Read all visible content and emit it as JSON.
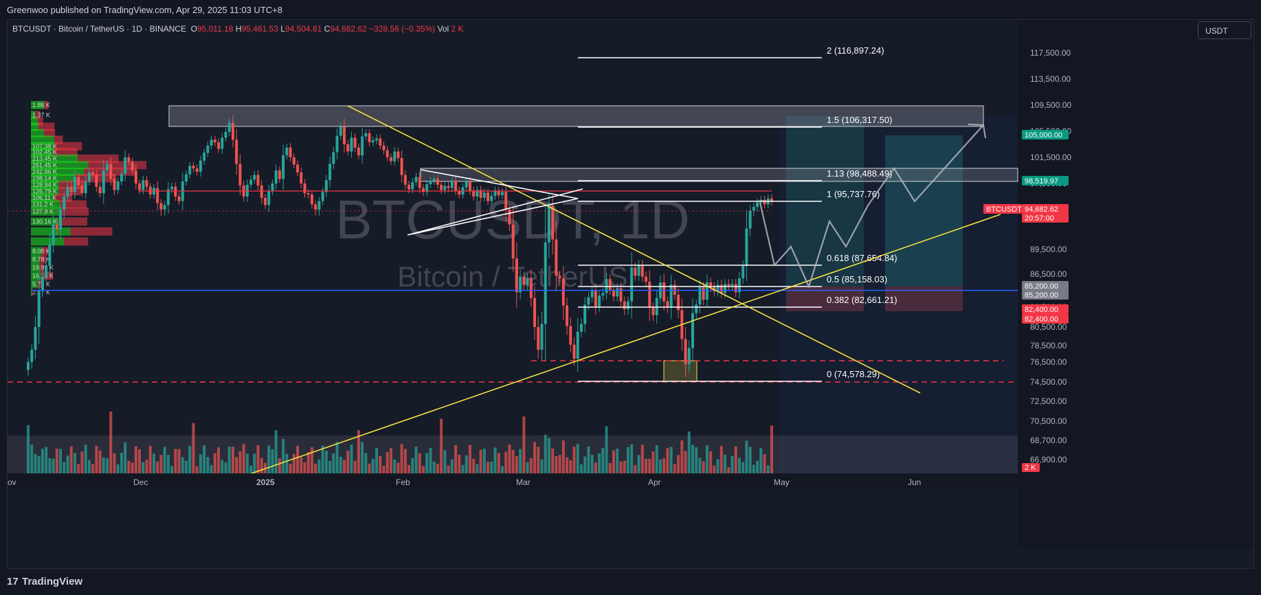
{
  "header": {
    "published": "Greenwoo published on TradingView.com, Apr 29, 2025 11:03 UTC+8"
  },
  "symbol_line": {
    "symbol": "BTCUSDT · Bitcoin / TetherUS · 1D · BINANCE",
    "o_label": "O",
    "o": "95,011.18",
    "h_label": "H",
    "h": "95,461.53",
    "l_label": "L",
    "l": "94,504.81",
    "c_label": "C",
    "c": "94,682.62",
    "change": "−328.56 (−0.35%)",
    "vol_label": "Vol",
    "vol": "2 K"
  },
  "currency_button": "USDT",
  "watermark": {
    "line1": "BTCUSDT, 1D",
    "line2": "Bitcoin / TetherUS"
  },
  "footer": {
    "brand": "TradingView"
  },
  "colors": {
    "background": "#161b28",
    "up": "#26a69a",
    "down": "#ef5350",
    "trendline": "#f5e342",
    "fib": "#ffffff",
    "poc": "#2962ff",
    "red_dashed": "#f23645"
  },
  "chart_data": {
    "type": "candlestick",
    "symbol": "BTCUSDT",
    "timeframe": "1D",
    "x_ticks": [
      "ov",
      "Dec",
      "2025",
      "Feb",
      "Mar",
      "Apr",
      "May",
      "Jun"
    ],
    "y_ticks": [
      "117,500.00",
      "113,500.00",
      "109,500.00",
      "105,500.00",
      "101,500.00",
      "97,500.00",
      "93,500.00",
      "89,500.00",
      "86,500.00",
      "82,500.00",
      "80,500.00",
      "78,500.00",
      "76,500.00",
      "74,500.00",
      "72,500.00",
      "70,500.00",
      "68,700.00",
      "66,900.00"
    ],
    "price_labels": [
      {
        "text": "105,000.00",
        "value": 105000,
        "color": "#089981"
      },
      {
        "text": "98,519.97",
        "value": 98519.97,
        "color": "#089981"
      },
      {
        "text": "BTCUSDT",
        "value": 94682.62,
        "color": "#f23645",
        "top": true
      },
      {
        "text": "94,682.62",
        "value": 94682.62,
        "color": "#f23645"
      },
      {
        "text": "20:57:00",
        "value": 94682.62,
        "color": "#f23645",
        "sub": true
      },
      {
        "text": "85,200.00",
        "value": 85200,
        "color": "#787b86"
      },
      {
        "text": "85,200.00",
        "value": 85200,
        "color": "#787b86",
        "second": true
      },
      {
        "text": "82,400.00",
        "value": 82400,
        "color": "#f23645"
      },
      {
        "text": "82,400.00",
        "value": 82400,
        "color": "#f23645",
        "second": true
      }
    ],
    "volume_label": "2 K",
    "fib_levels": [
      {
        "ratio": "2",
        "price": 116897.24,
        "label": "2 (116,897.24)"
      },
      {
        "ratio": "1.5",
        "price": 106317.5,
        "label": "1.5 (106,317.50)"
      },
      {
        "ratio": "1.13",
        "price": 98488.49,
        "label": "1.13 (98,488.49)"
      },
      {
        "ratio": "1",
        "price": 95737.76,
        "label": "1 (95,737.76)"
      },
      {
        "ratio": "0.618",
        "price": 87654.84,
        "label": "0.618 (87,654.84)"
      },
      {
        "ratio": "0.5",
        "price": 85158.03,
        "label": "0.5 (85,158.03)"
      },
      {
        "ratio": "0.382",
        "price": 82661.21,
        "label": "0.382 (82,661.21)"
      },
      {
        "ratio": "0",
        "price": 74578.29,
        "label": "0 (74,578.29)"
      }
    ],
    "volume_profile_rows": [
      {
        "price": 109500,
        "up": 60,
        "down": 20,
        "label": "1.86 K"
      },
      {
        "price": 108000,
        "up": 20,
        "down": 22,
        "label": "1.37 K"
      },
      {
        "price": 107000,
        "up": 30,
        "down": 25
      },
      {
        "price": 106200,
        "up": 35,
        "down": 72
      },
      {
        "price": 105200,
        "up": 60,
        "down": 50
      },
      {
        "price": 104200,
        "up": 105,
        "down": 40
      },
      {
        "price": 103200,
        "up": 107,
        "down": 125,
        "label": "107.38 K"
      },
      {
        "price": 102300,
        "up": 102,
        "down": 110,
        "label": "102.45 K"
      },
      {
        "price": 101300,
        "up": 213,
        "down": 186,
        "label": "213.45 K"
      },
      {
        "price": 100300,
        "up": 261,
        "down": 264,
        "label": "261.45 K"
      },
      {
        "price": 99300,
        "up": 242,
        "down": 239,
        "label": "242.96 K"
      },
      {
        "price": 98300,
        "up": 198,
        "down": 190,
        "label": "198.14 K"
      },
      {
        "price": 97300,
        "up": 128,
        "down": 127,
        "label": "128.94 K"
      },
      {
        "price": 96300,
        "up": 126,
        "down": 101,
        "label": "126.79 K"
      },
      {
        "price": 95300,
        "up": 106,
        "down": 82,
        "label": "106.11 K"
      },
      {
        "price": 94300,
        "up": 131,
        "down": 122,
        "label": "131.2 K"
      },
      {
        "price": 93300,
        "up": 137,
        "down": 126,
        "label": "137.9 K"
      },
      {
        "price": 92300,
        "up": 130,
        "down": 126,
        "label": "130.16 K"
      },
      {
        "price": 91300,
        "up": 180,
        "down": 190
      },
      {
        "price": 90300,
        "up": 150,
        "down": 110
      },
      {
        "price": 89300,
        "up": 50,
        "down": 40,
        "label": "8.08 K"
      },
      {
        "price": 88300,
        "up": 40,
        "down": 30,
        "label": "8.78 K"
      },
      {
        "price": 87300,
        "up": 40,
        "down": 20,
        "label": "19.93 K"
      },
      {
        "price": 86300,
        "up": 45,
        "down": 55,
        "label": "16.15 K"
      },
      {
        "price": 85300,
        "up": 30,
        "down": 28,
        "label": "5.75 K"
      },
      {
        "price": 84300,
        "up": 5,
        "down": 3,
        "label": "2.77 K"
      }
    ],
    "grid": false,
    "legend": "top-left"
  }
}
